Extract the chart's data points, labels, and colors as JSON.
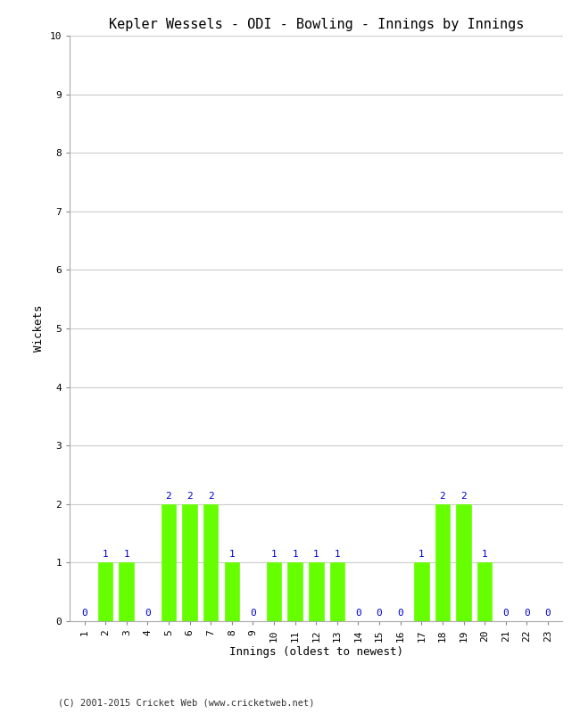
{
  "title": "Kepler Wessels - ODI - Bowling - Innings by Innings",
  "xlabel": "Innings (oldest to newest)",
  "ylabel": "Wickets",
  "innings": [
    1,
    2,
    3,
    4,
    5,
    6,
    7,
    8,
    9,
    10,
    11,
    12,
    13,
    14,
    15,
    16,
    17,
    18,
    19,
    20,
    21,
    22,
    23
  ],
  "wickets": [
    0,
    1,
    1,
    0,
    2,
    2,
    2,
    1,
    0,
    1,
    1,
    1,
    1,
    0,
    0,
    0,
    1,
    2,
    2,
    1,
    0,
    0,
    0
  ],
  "bar_color": "#66ff00",
  "bar_edge_color": "#66ff00",
  "label_color": "#0000cc",
  "background_color": "#ffffff",
  "grid_color": "#cccccc",
  "ylim": [
    0,
    10
  ],
  "yticks": [
    0,
    1,
    2,
    3,
    4,
    5,
    6,
    7,
    8,
    9,
    10
  ],
  "title_fontsize": 11,
  "axis_label_fontsize": 9,
  "tick_fontsize": 8,
  "label_fontsize": 8,
  "copyright": "(C) 2001-2015 Cricket Web (www.cricketweb.net)"
}
